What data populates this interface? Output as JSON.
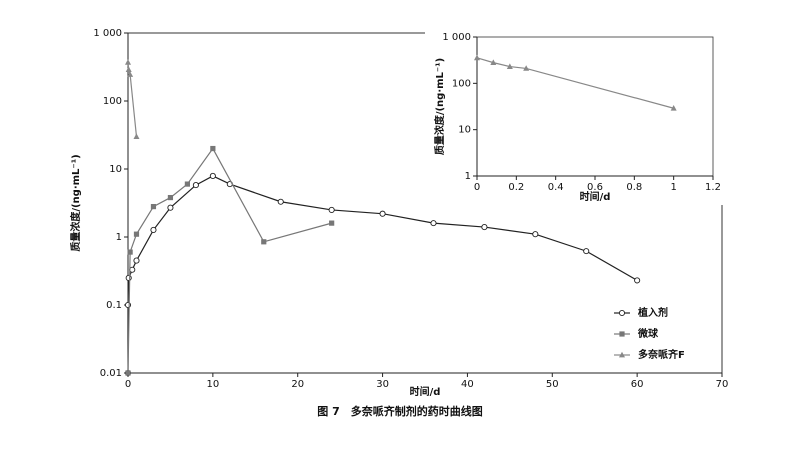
{
  "chart_data": [
    {
      "type": "line",
      "title": "图 7　多奈哌齐制剂的药时曲线图",
      "x_label": "时间/d",
      "y_label": "质量浓度/(ng·mL⁻¹)",
      "log_y": true,
      "xlim": [
        0,
        70
      ],
      "ylim": [
        0.01,
        1000
      ],
      "xticks": [
        0,
        10,
        20,
        30,
        40,
        50,
        60,
        70
      ],
      "yticks": [
        0.01,
        0.1,
        1,
        10,
        100,
        {
          "value": 1000,
          "label": "1 000"
        }
      ],
      "legend": "lower right",
      "series": [
        {
          "name": "植入剂",
          "color": "#222222",
          "marker": "circle",
          "x": [
            0,
            0,
            0.083,
            0.5,
            1,
            3,
            5,
            8,
            10,
            12,
            18,
            24,
            30,
            36,
            42,
            48,
            54,
            60
          ],
          "values": [
            0.01,
            0.1,
            0.25,
            0.33,
            0.45,
            1.27,
            2.7,
            5.8,
            7.9,
            6,
            3.3,
            2.5,
            2.2,
            1.6,
            1.4,
            1.1,
            0.62,
            0.23
          ]
        },
        {
          "name": "微球",
          "color": "#777777",
          "marker": "square",
          "x": [
            0,
            0.25,
            1,
            3,
            5,
            7,
            10,
            16,
            24
          ],
          "values": [
            0.01,
            0.6,
            1.1,
            2.8,
            3.8,
            6,
            20,
            0.85,
            1.6
          ]
        },
        {
          "name": "多奈哌齐F",
          "color": "#888888",
          "marker": "triangle",
          "x": [
            0,
            0.083,
            0.25,
            1
          ],
          "values": [
            370,
            290,
            245,
            30
          ]
        }
      ]
    },
    {
      "type": "line",
      "x_label": "时间/d",
      "y_label": "质量浓度/(ng·mL⁻¹)",
      "log_y": true,
      "xlim": [
        0,
        1.2
      ],
      "ylim": [
        1,
        1000
      ],
      "xticks": [
        0,
        0.2,
        0.4,
        0.6,
        0.8,
        1,
        1.2
      ],
      "yticks": [
        1,
        10,
        100,
        {
          "value": 1000,
          "label": "1 000"
        }
      ],
      "series": [
        {
          "color": "#888888",
          "marker": "triangle",
          "x": [
            0,
            0.083,
            0.167,
            0.25,
            1
          ],
          "values": [
            355,
            280,
            230,
            210,
            29
          ]
        }
      ]
    }
  ]
}
